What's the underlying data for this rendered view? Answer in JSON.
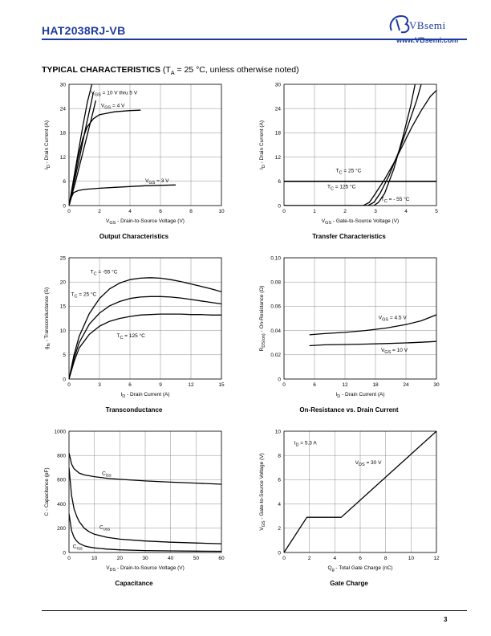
{
  "header": {
    "part_number": "HAT2038RJ-VB",
    "brand": "VBsemi",
    "website": "www.VBsemi.com",
    "brand_color": "#1e3a9e"
  },
  "section": {
    "title_bold": "TYPICAL CHARACTERISTICS",
    "condition_parts": [
      "(T",
      "A",
      " = 25 °C, unless otherwise noted)"
    ]
  },
  "page_number": "3",
  "chart_data": [
    {
      "id": "output",
      "type": "line",
      "title": "Output Characteristics",
      "xlabel": [
        [
          "V"
        ],
        [
          "GS",
          "sub"
        ],
        [
          " - Drain-to-Source Voltage (V)"
        ]
      ],
      "ylabel": [
        [
          "I"
        ],
        [
          "D",
          "sub"
        ],
        [
          " - Drain Current (A)"
        ]
      ],
      "xlim": [
        0,
        10
      ],
      "ylim": [
        0,
        30
      ],
      "xticks": [
        0,
        2,
        4,
        6,
        8,
        10
      ],
      "yticks": [
        0,
        6,
        12,
        18,
        24,
        30
      ],
      "tick_labels_x": [
        "0",
        "2",
        "4",
        "6",
        "8",
        "10"
      ],
      "tick_labels_y": [
        "0",
        "6",
        "12",
        "18",
        "24",
        "30"
      ],
      "grid": true,
      "series": [
        {
          "name": "VGS = 10 V thru 5 V",
          "x": [
            0,
            0.3,
            0.6,
            0.9,
            1.2,
            1.5
          ],
          "y": [
            0,
            6.5,
            13,
            19.5,
            25.5,
            30
          ]
        },
        {
          "name": "",
          "x": [
            0,
            0.35,
            0.7,
            1.05,
            1.4,
            1.6
          ],
          "y": [
            0,
            6,
            12,
            18.5,
            24.5,
            28
          ]
        },
        {
          "name": "",
          "x": [
            0,
            0.4,
            0.8,
            1.2,
            1.6,
            1.75
          ],
          "y": [
            0,
            5.5,
            11.5,
            17.5,
            23.5,
            26
          ]
        },
        {
          "name": "VGS = 4 V",
          "x": [
            0,
            0.3,
            0.6,
            0.9,
            1.2,
            1.6,
            2,
            3,
            4,
            4.7
          ],
          "y": [
            0,
            6,
            12,
            16.5,
            19.5,
            21.5,
            22.5,
            23.2,
            23.5,
            23.6
          ]
        },
        {
          "name": "VGS = 3 V",
          "x": [
            0,
            0.15,
            0.3,
            0.6,
            1,
            2,
            3,
            4,
            5,
            6,
            7
          ],
          "y": [
            0,
            2,
            3.2,
            3.7,
            4,
            4.3,
            4.5,
            4.7,
            4.9,
            5,
            5.1
          ]
        }
      ],
      "annotations": [
        {
          "parts": [
            [
              "V"
            ],
            [
              "GS",
              "sub"
            ],
            [
              " = 10 V thru 5 V"
            ]
          ],
          "x": 1.45,
          "y": 27.5
        },
        {
          "parts": [
            [
              "V"
            ],
            [
              "GS",
              "sub"
            ],
            [
              " = 4 V"
            ]
          ],
          "x": 2.1,
          "y": 24.3
        },
        {
          "parts": [
            [
              "V"
            ],
            [
              "GS",
              "sub"
            ],
            [
              " = 3 V"
            ]
          ],
          "x": 5,
          "y": 5.8
        }
      ]
    },
    {
      "id": "transfer",
      "type": "line",
      "title": "Transfer Characteristics",
      "xlabel": [
        [
          "V"
        ],
        [
          "GS",
          "sub"
        ],
        [
          " - Gate-to-Source Voltage (V)"
        ]
      ],
      "ylabel": [
        [
          "I"
        ],
        [
          "D",
          "sub"
        ],
        [
          " - Drain Current (A)"
        ]
      ],
      "xlim": [
        0,
        5
      ],
      "ylim": [
        0,
        30
      ],
      "xticks": [
        0,
        1,
        2,
        3,
        4,
        5
      ],
      "yticks": [
        0,
        6,
        12,
        18,
        24,
        30
      ],
      "tick_labels_x": [
        "0",
        "1",
        "2",
        "3",
        "4",
        "5"
      ],
      "tick_labels_y": [
        "0",
        "6",
        "12",
        "18",
        "24",
        "30"
      ],
      "grid": true,
      "series": [
        {
          "name": "TC = 125 °C",
          "x": [
            0,
            2.6,
            2.8,
            3,
            3.3,
            3.6,
            3.9,
            4.2,
            4.5,
            4.8,
            5
          ],
          "y": [
            0,
            0,
            0.8,
            3,
            6.5,
            10.5,
            15,
            19.5,
            23.5,
            27,
            28.5
          ]
        },
        {
          "name": "TC = 25 °C",
          "x": [
            0,
            2.75,
            2.95,
            3.15,
            3.45,
            3.8,
            4.1,
            4.35,
            4.5
          ],
          "y": [
            0,
            0,
            0.8,
            3,
            7.5,
            14,
            20.5,
            26,
            30
          ]
        },
        {
          "name": "TC = -55 °C",
          "x": [
            0,
            2.95,
            3.1,
            3.3,
            3.6,
            3.9,
            4.15,
            4.3
          ],
          "y": [
            0,
            0,
            0.8,
            3,
            9,
            17,
            24.5,
            30
          ]
        }
      ],
      "annotations": [
        {
          "parts": [
            [
              "T"
            ],
            [
              "C",
              "sub"
            ],
            [
              " = 25 °C"
            ]
          ],
          "x": 1.7,
          "y": 8.2
        },
        {
          "parts": [
            [
              "T"
            ],
            [
              "C",
              "sub"
            ],
            [
              " = 125 °C"
            ]
          ],
          "x": 1.42,
          "y": 4.3
        },
        {
          "parts": [
            [
              "T"
            ],
            [
              "C",
              "sub"
            ],
            [
              " = - 55 °C"
            ]
          ],
          "x": 3.18,
          "y": 1.2
        }
      ],
      "hline": 6
    },
    {
      "id": "transconductance",
      "type": "line",
      "title": "Transconductance",
      "xlabel": [
        [
          "I"
        ],
        [
          "D",
          "sub"
        ],
        [
          " - Drain Current (A)"
        ]
      ],
      "ylabel": [
        [
          "g"
        ],
        [
          "fs",
          "sub"
        ],
        [
          " - Transconductance (S)"
        ]
      ],
      "xlim": [
        0,
        15
      ],
      "ylim": [
        0,
        25
      ],
      "xticks": [
        0,
        3,
        6,
        9,
        12,
        15
      ],
      "yticks": [
        0,
        5,
        10,
        15,
        20,
        25
      ],
      "tick_labels_x": [
        "0",
        "3",
        "6",
        "9",
        "12",
        "15"
      ],
      "tick_labels_y": [
        "0",
        "5",
        "10",
        "15",
        "20",
        "25"
      ],
      "grid": true,
      "series": [
        {
          "name": "TC = -55 °C",
          "x": [
            0,
            0.5,
            1,
            2,
            3,
            4,
            5,
            6,
            7,
            8,
            9,
            10,
            11,
            12,
            13,
            14,
            15
          ],
          "y": [
            0,
            5,
            8.8,
            13.5,
            16.6,
            18.6,
            19.8,
            20.5,
            20.8,
            20.9,
            20.8,
            20.5,
            20.1,
            19.6,
            19.1,
            18.6,
            18
          ]
        },
        {
          "name": "TC = 25 °C",
          "x": [
            0,
            0.5,
            1,
            2,
            3,
            4,
            5,
            6,
            7,
            8,
            9,
            10,
            11,
            12,
            13,
            14,
            15
          ],
          "y": [
            0,
            4.3,
            7.5,
            11.3,
            13.6,
            15.1,
            16,
            16.6,
            16.9,
            17,
            17,
            16.9,
            16.7,
            16.4,
            16.1,
            15.8,
            15.5
          ]
        },
        {
          "name": "TC = 125 °C",
          "x": [
            0,
            0.5,
            1,
            2,
            3,
            4,
            5,
            6,
            7,
            8,
            9,
            10,
            11,
            12,
            13,
            14,
            15
          ],
          "y": [
            0,
            3.6,
            6.4,
            9.2,
            10.9,
            11.9,
            12.5,
            12.9,
            13.2,
            13.3,
            13.4,
            13.4,
            13.4,
            13.3,
            13.3,
            13.2,
            13.2
          ]
        }
      ],
      "annotations": [
        {
          "parts": [
            [
              "T"
            ],
            [
              "C",
              "sub"
            ],
            [
              " = -55 °C"
            ]
          ],
          "x": 2.1,
          "y": 21.8
        },
        {
          "parts": [
            [
              "T"
            ],
            [
              "C",
              "sub"
            ],
            [
              " = 25 °C"
            ]
          ],
          "x": 0.2,
          "y": 17.1
        },
        {
          "parts": [
            [
              "T"
            ],
            [
              "C",
              "sub"
            ],
            [
              " = 125 °C"
            ]
          ],
          "x": 4.7,
          "y": 8.6
        }
      ]
    },
    {
      "id": "on_resistance",
      "type": "line",
      "title": "On-Resistance vs. Drain Current",
      "xlabel": [
        [
          "I"
        ],
        [
          "D",
          "sub"
        ],
        [
          " - Drain Current (A)"
        ]
      ],
      "ylabel": [
        [
          "R"
        ],
        [
          "DS(on)",
          "sub"
        ],
        [
          " - On-Resistance (Ω)"
        ]
      ],
      "xlim": [
        0,
        30
      ],
      "ylim": [
        0,
        0.1
      ],
      "xticks": [
        0,
        6,
        12,
        18,
        24,
        30
      ],
      "yticks": [
        0,
        0.02,
        0.04,
        0.06,
        0.08,
        0.1
      ],
      "tick_labels_x": [
        "0",
        "6",
        "12",
        "18",
        "24",
        "30"
      ],
      "tick_labels_y": [
        "0",
        "0.02",
        "0.04",
        "0.06",
        "0.08",
        "0.10"
      ],
      "grid": true,
      "series": [
        {
          "name": "VGS = 4.5 V",
          "x": [
            5,
            8,
            12,
            16,
            20,
            24,
            27,
            30
          ],
          "y": [
            0.0365,
            0.0375,
            0.0385,
            0.04,
            0.042,
            0.045,
            0.048,
            0.053
          ]
        },
        {
          "name": "VGS = 10 V",
          "x": [
            5,
            8,
            12,
            16,
            20,
            24,
            27,
            30
          ],
          "y": [
            0.0275,
            0.0282,
            0.0285,
            0.0288,
            0.0293,
            0.0298,
            0.0303,
            0.031
          ]
        }
      ],
      "annotations": [
        {
          "parts": [
            [
              "V"
            ],
            [
              "GS",
              "sub"
            ],
            [
              " = 4.5 V"
            ]
          ],
          "x": 18.6,
          "y": 0.0495
        },
        {
          "parts": [
            [
              "V"
            ],
            [
              "GS",
              "sub"
            ],
            [
              " = 10 V"
            ]
          ],
          "x": 19.1,
          "y": 0.0225
        }
      ]
    },
    {
      "id": "capacitance",
      "type": "line",
      "title": "Capacitance",
      "xlabel": [
        [
          "V"
        ],
        [
          "DS",
          "sub"
        ],
        [
          " - Drain-to-Source Voltage (V)"
        ]
      ],
      "ylabel": [
        [
          "C - Capacitance (pF)"
        ]
      ],
      "xlim": [
        0,
        60
      ],
      "ylim": [
        0,
        1000
      ],
      "xticks": [
        0,
        10,
        20,
        30,
        40,
        50,
        60
      ],
      "yticks": [
        0,
        200,
        400,
        600,
        800,
        1000
      ],
      "tick_labels_x": [
        "0",
        "10",
        "20",
        "30",
        "40",
        "50",
        "60"
      ],
      "tick_labels_y": [
        "0",
        "200",
        "400",
        "600",
        "800",
        "1000"
      ],
      "grid": true,
      "series": [
        {
          "name": "Ciss",
          "x": [
            0,
            1,
            2,
            4,
            6,
            10,
            15,
            20,
            30,
            40,
            50,
            60
          ],
          "y": [
            820,
            730,
            690,
            655,
            640,
            625,
            612,
            603,
            590,
            580,
            572,
            563
          ]
        },
        {
          "name": "Coss",
          "x": [
            0,
            1,
            2,
            3,
            4,
            6,
            8,
            10,
            15,
            20,
            30,
            40,
            50,
            60
          ],
          "y": [
            700,
            470,
            360,
            300,
            255,
            200,
            170,
            150,
            125,
            110,
            95,
            85,
            78,
            72
          ]
        },
        {
          "name": "Crss",
          "x": [
            0,
            1,
            2,
            3,
            4,
            6,
            8,
            10,
            15,
            20,
            30,
            40,
            50,
            60
          ],
          "y": [
            320,
            180,
            125,
            95,
            75,
            55,
            45,
            38,
            28,
            22,
            16,
            13,
            11,
            10
          ]
        }
      ],
      "annotations": [
        {
          "parts": [
            [
              "C"
            ],
            [
              "iss",
              "sub"
            ]
          ],
          "x": 13,
          "y": 640
        },
        {
          "parts": [
            [
              "C"
            ],
            [
              "oss",
              "sub"
            ]
          ],
          "x": 12,
          "y": 195
        },
        {
          "parts": [
            [
              "C"
            ],
            [
              "rss",
              "sub"
            ]
          ],
          "x": 1.5,
          "y": 35
        }
      ]
    },
    {
      "id": "gate_charge",
      "type": "line",
      "title": "Gate Charge",
      "xlabel": [
        [
          "Q"
        ],
        [
          "g",
          "sub"
        ],
        [
          " - Total Gate Charge (nC)"
        ]
      ],
      "ylabel": [
        [
          "V"
        ],
        [
          "GS",
          "sub"
        ],
        [
          " - Gate-to-Source Voltage (V)"
        ]
      ],
      "xlim": [
        0,
        12
      ],
      "ylim": [
        0,
        10
      ],
      "xticks": [
        0,
        2,
        4,
        6,
        8,
        10,
        12
      ],
      "yticks": [
        0,
        2,
        4,
        6,
        8,
        10
      ],
      "tick_labels_x": [
        "0",
        "2",
        "4",
        "6",
        "8",
        "10",
        "12"
      ],
      "tick_labels_y": [
        "0",
        "2",
        "4",
        "6",
        "8",
        "10"
      ],
      "grid": true,
      "series": [
        {
          "name": "VDS = 30 V",
          "x": [
            0,
            1.8,
            4.5,
            12
          ],
          "y": [
            0,
            2.9,
            2.9,
            10
          ]
        }
      ],
      "annotations": [
        {
          "parts": [
            [
              "I"
            ],
            [
              "D",
              "sub"
            ],
            [
              " = 5.3 A"
            ]
          ],
          "x": 0.8,
          "y": 8.9
        },
        {
          "parts": [
            [
              "V"
            ],
            [
              "DS",
              "sub"
            ],
            [
              " = 30 V"
            ]
          ],
          "x": 5.6,
          "y": 7.3
        }
      ]
    }
  ]
}
